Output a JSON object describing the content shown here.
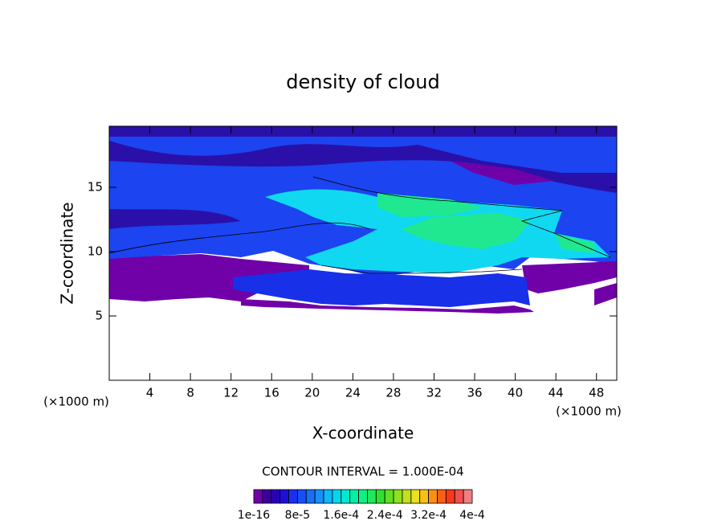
{
  "chart_data": {
    "type": "contour",
    "title": "density of cloud",
    "x_label": "X-coordinate",
    "y_label": "Z-coordinate",
    "x_unit": "(×1000 m)",
    "y_unit": "(×1000 m)",
    "xlim": [
      0,
      50
    ],
    "ylim": [
      0,
      19.75
    ],
    "xticks": [
      4,
      8,
      12,
      16,
      20,
      24,
      28,
      32,
      36,
      40,
      44,
      48
    ],
    "yticks": [
      5,
      10,
      15
    ],
    "contour_interval": "CONTOUR INTERVAL = 1.000E-04",
    "colorbar": {
      "colors": [
        "#7000a8",
        "#3a00a0",
        "#2800b8",
        "#1c10d8",
        "#1830f0",
        "#1850f8",
        "#1870f8",
        "#1890f8",
        "#10b8f8",
        "#00d8f0",
        "#00e8d0",
        "#00f0a8",
        "#10f080",
        "#20e858",
        "#30e030",
        "#60e020",
        "#90e020",
        "#c0e020",
        "#e8e020",
        "#f8c018",
        "#f89018",
        "#f86018",
        "#f83818",
        "#f05050",
        "#f08080"
      ],
      "labels": [
        "1e-16",
        "8e-5",
        "1.6e-4",
        "2.4e-4",
        "3.2e-4",
        "4e-4"
      ]
    }
  }
}
